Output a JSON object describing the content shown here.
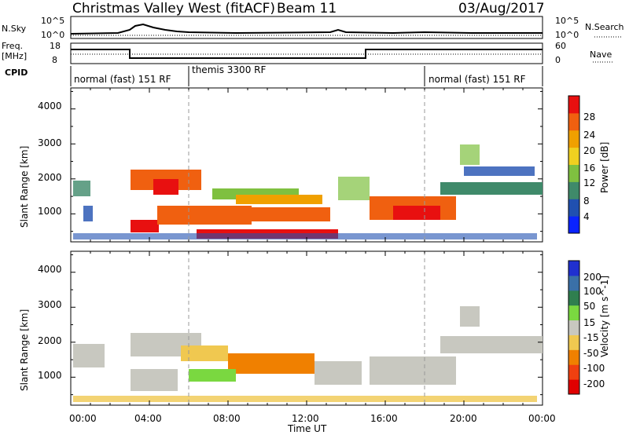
{
  "header": {
    "title": "Christmas Valley West (fitACF)",
    "beam": "Beam 11",
    "date": "03/Aug/2017"
  },
  "nsky_panel": {
    "left_label": "N.Sky",
    "right_label": "N.Search",
    "tick_top": "10^5",
    "tick_bottom": "10^0"
  },
  "freq_panel": {
    "left_label_1": "Freq.",
    "left_label_2": "[MHz]",
    "right_label": "Nave",
    "left_tick_top": "18",
    "left_tick_bottom": "8",
    "right_tick_top": "60",
    "right_tick_bottom": "0"
  },
  "cpid_panel": {
    "label": "CPID",
    "segments": [
      "normal (fast) 151 RF",
      "themis 3300 RF",
      "normal (fast) 151 RF"
    ]
  },
  "chart_data": [
    {
      "type": "heatmap",
      "name": "power",
      "ylabel": "Slant Range [km]",
      "yticks": [
        "1000",
        "2000",
        "3000",
        "4000"
      ],
      "ylim": [
        200,
        4600
      ],
      "colorbar": {
        "label": "Power [dB]",
        "ticks": [
          "4",
          "8",
          "12",
          "16",
          "20",
          "24",
          "28"
        ],
        "colors": [
          "#0a23ff",
          "#2050b0",
          "#3f8a6a",
          "#7fc040",
          "#f0d020",
          "#f0a000",
          "#f06010",
          "#e81010"
        ]
      }
    },
    {
      "type": "heatmap",
      "name": "velocity",
      "ylabel": "Slant Range [km]",
      "yticks": [
        "1000",
        "2000",
        "3000",
        "4000"
      ],
      "ylim": [
        200,
        4600
      ],
      "colorbar": {
        "label": "Velocity [m s^-1]",
        "ticks": [
          "200",
          "100",
          "50",
          "15",
          "-15",
          "-50",
          "-100",
          "-200"
        ],
        "colors": [
          "#2030d0",
          "#3a70a8",
          "#2f7f4f",
          "#7ad840",
          "#c8c8c0",
          "#f0c850",
          "#f08000",
          "#f04010",
          "#e00000"
        ]
      }
    }
  ],
  "time_axis": {
    "label": "Time UT",
    "ticks": [
      "00:00",
      "04:00",
      "08:00",
      "12:00",
      "16:00",
      "20:00",
      "00:00"
    ]
  }
}
